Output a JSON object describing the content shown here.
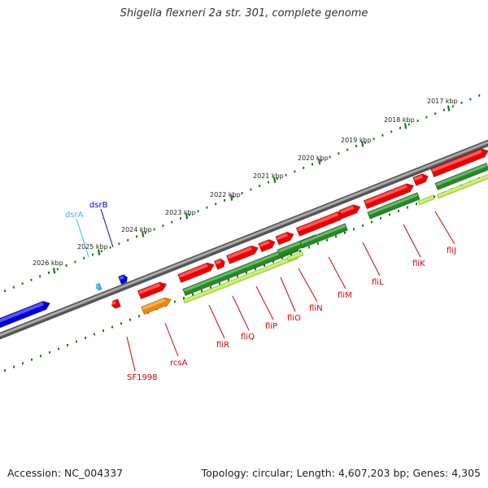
{
  "title": "Shigella flexneri 2a str. 301, complete genome",
  "footer": {
    "accession": "Accession: NC_004337",
    "summary": "Topology: circular; Length: 4,607,203 bp; Genes: 4,305"
  },
  "colors": {
    "backbone": "#7f7f7f",
    "dot_track": "#1a7a1a",
    "gene_red": "#ee0000",
    "gene_blue": "#0000dd",
    "gene_cyan": "#33bbee",
    "gene_orange": "#ee8800",
    "cds_green": "#228b22",
    "cds_lime": "#bbee44"
  },
  "ticks": [
    "2017 kbp",
    "2018 kbp",
    "2019 kbp",
    "2020 kbp",
    "2021 kbp",
    "2022 kbp",
    "2023 kbp",
    "2024 kbp",
    "2025 kbp",
    "2026 kbp"
  ],
  "genes_above": [
    {
      "label": "dsrA",
      "color": "#33bbee"
    },
    {
      "label": "dsrB",
      "color": "#0000dd"
    }
  ],
  "genes_below": [
    {
      "label": "SF1998",
      "color": "#dd0000"
    },
    {
      "label": "rcsA",
      "color": "#dd0000"
    },
    {
      "label": "fliR",
      "color": "#dd0000"
    },
    {
      "label": "fliQ",
      "color": "#dd0000"
    },
    {
      "label": "fliP",
      "color": "#dd0000"
    },
    {
      "label": "fliO",
      "color": "#dd0000"
    },
    {
      "label": "fliN",
      "color": "#dd0000"
    },
    {
      "label": "fliM",
      "color": "#dd0000"
    },
    {
      "label": "fliL",
      "color": "#dd0000"
    },
    {
      "label": "fliK",
      "color": "#dd0000"
    },
    {
      "label": "fliJ",
      "color": "#dd0000"
    }
  ]
}
